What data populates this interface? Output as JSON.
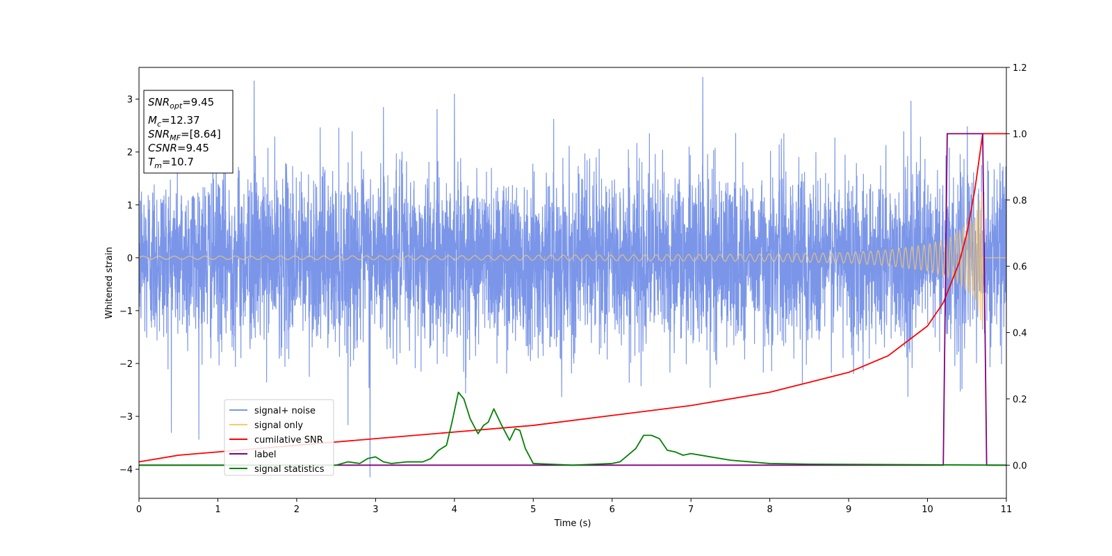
{
  "chart_data": {
    "type": "line",
    "xlabel": "Time (s)",
    "ylabel": "Whitened strain",
    "xlim": [
      0,
      11
    ],
    "ylim_left": [
      -4.55,
      3.6
    ],
    "ylim_right": [
      -0.1,
      1.2
    ],
    "grid": false,
    "legend_position": "lower-left",
    "x_ticks": [
      "0",
      "1",
      "2",
      "3",
      "4",
      "5",
      "6",
      "7",
      "8",
      "9",
      "10",
      "11"
    ],
    "y_ticks_left": [
      "−4",
      "−3",
      "−2",
      "−1",
      "0",
      "1",
      "2",
      "3"
    ],
    "y_ticks_right": [
      "0.0",
      "0.2",
      "0.4",
      "0.6",
      "0.8",
      "1.0",
      "1.2"
    ],
    "info_box": {
      "snr_opt": {
        "main": "SNR",
        "sub": "opt",
        "rest": "=9.45"
      },
      "mc": {
        "main": "M",
        "sub": "c",
        "rest": "=12.37"
      },
      "snr_mf": {
        "main": "SNR",
        "sub": "MF",
        "rest": "=[8.64]"
      },
      "csnr": {
        "main": "CSNR",
        "rest": "=9.45"
      },
      "tm": {
        "main": "T",
        "sub": "m",
        "rest": "=10.7"
      }
    },
    "series": [
      {
        "name": "signal+ noise",
        "color": "#7b96e8",
        "axis": "left",
        "description": "whitened noise with unit variance, peaks near ±3.4",
        "notable_points": [
          [
            1.46,
            3.35
          ],
          [
            7.15,
            3.42
          ],
          [
            2.93,
            -4.15
          ],
          [
            3.1,
            2.85
          ],
          [
            4.0,
            3.1
          ]
        ]
      },
      {
        "name": "signal only",
        "color": "#ffc966",
        "axis": "left",
        "envelope": {
          "x": [
            0,
            4,
            8,
            9,
            9.5,
            10,
            10.3,
            10.5,
            10.6,
            10.7
          ],
          "y": [
            0.03,
            0.04,
            0.07,
            0.1,
            0.15,
            0.25,
            0.4,
            0.62,
            0.75,
            1.35
          ]
        }
      },
      {
        "name": "cumilative SNR",
        "color": "#ff0000",
        "axis": "right",
        "x": [
          0,
          0.5,
          1,
          2,
          3,
          4,
          5,
          6,
          7,
          8,
          8.5,
          9,
          9.5,
          10,
          10.2,
          10.4,
          10.5,
          10.6,
          10.7,
          11
        ],
        "y": [
          0.01,
          0.03,
          0.04,
          0.06,
          0.08,
          0.1,
          0.12,
          0.15,
          0.18,
          0.22,
          0.25,
          0.28,
          0.33,
          0.42,
          0.49,
          0.61,
          0.7,
          0.83,
          1.0,
          1.0
        ]
      },
      {
        "name": "label",
        "color": "#800080",
        "axis": "right",
        "x": [
          0,
          10.2,
          10.25,
          10.7,
          10.75,
          11
        ],
        "y": [
          0,
          0,
          1,
          1,
          0,
          0
        ]
      },
      {
        "name": "signal statistics",
        "color": "#008000",
        "axis": "right",
        "x": [
          0,
          2.5,
          2.65,
          2.8,
          2.9,
          3.0,
          3.1,
          3.2,
          3.4,
          3.6,
          3.7,
          3.8,
          3.9,
          3.97,
          4.05,
          4.12,
          4.2,
          4.3,
          4.37,
          4.43,
          4.5,
          4.6,
          4.7,
          4.77,
          4.83,
          4.9,
          5.0,
          5.5,
          6.0,
          6.1,
          6.3,
          6.4,
          6.5,
          6.6,
          6.7,
          6.8,
          6.9,
          7.0,
          7.5,
          8.0,
          8.5,
          11
        ],
        "y": [
          0.0,
          0.0,
          0.01,
          0.005,
          0.02,
          0.025,
          0.01,
          0.005,
          0.01,
          0.01,
          0.02,
          0.045,
          0.06,
          0.13,
          0.22,
          0.2,
          0.14,
          0.095,
          0.12,
          0.13,
          0.17,
          0.12,
          0.075,
          0.11,
          0.105,
          0.05,
          0.005,
          0.0,
          0.005,
          0.01,
          0.05,
          0.09,
          0.09,
          0.08,
          0.045,
          0.04,
          0.03,
          0.035,
          0.015,
          0.005,
          0.003,
          0.0
        ]
      }
    ]
  }
}
